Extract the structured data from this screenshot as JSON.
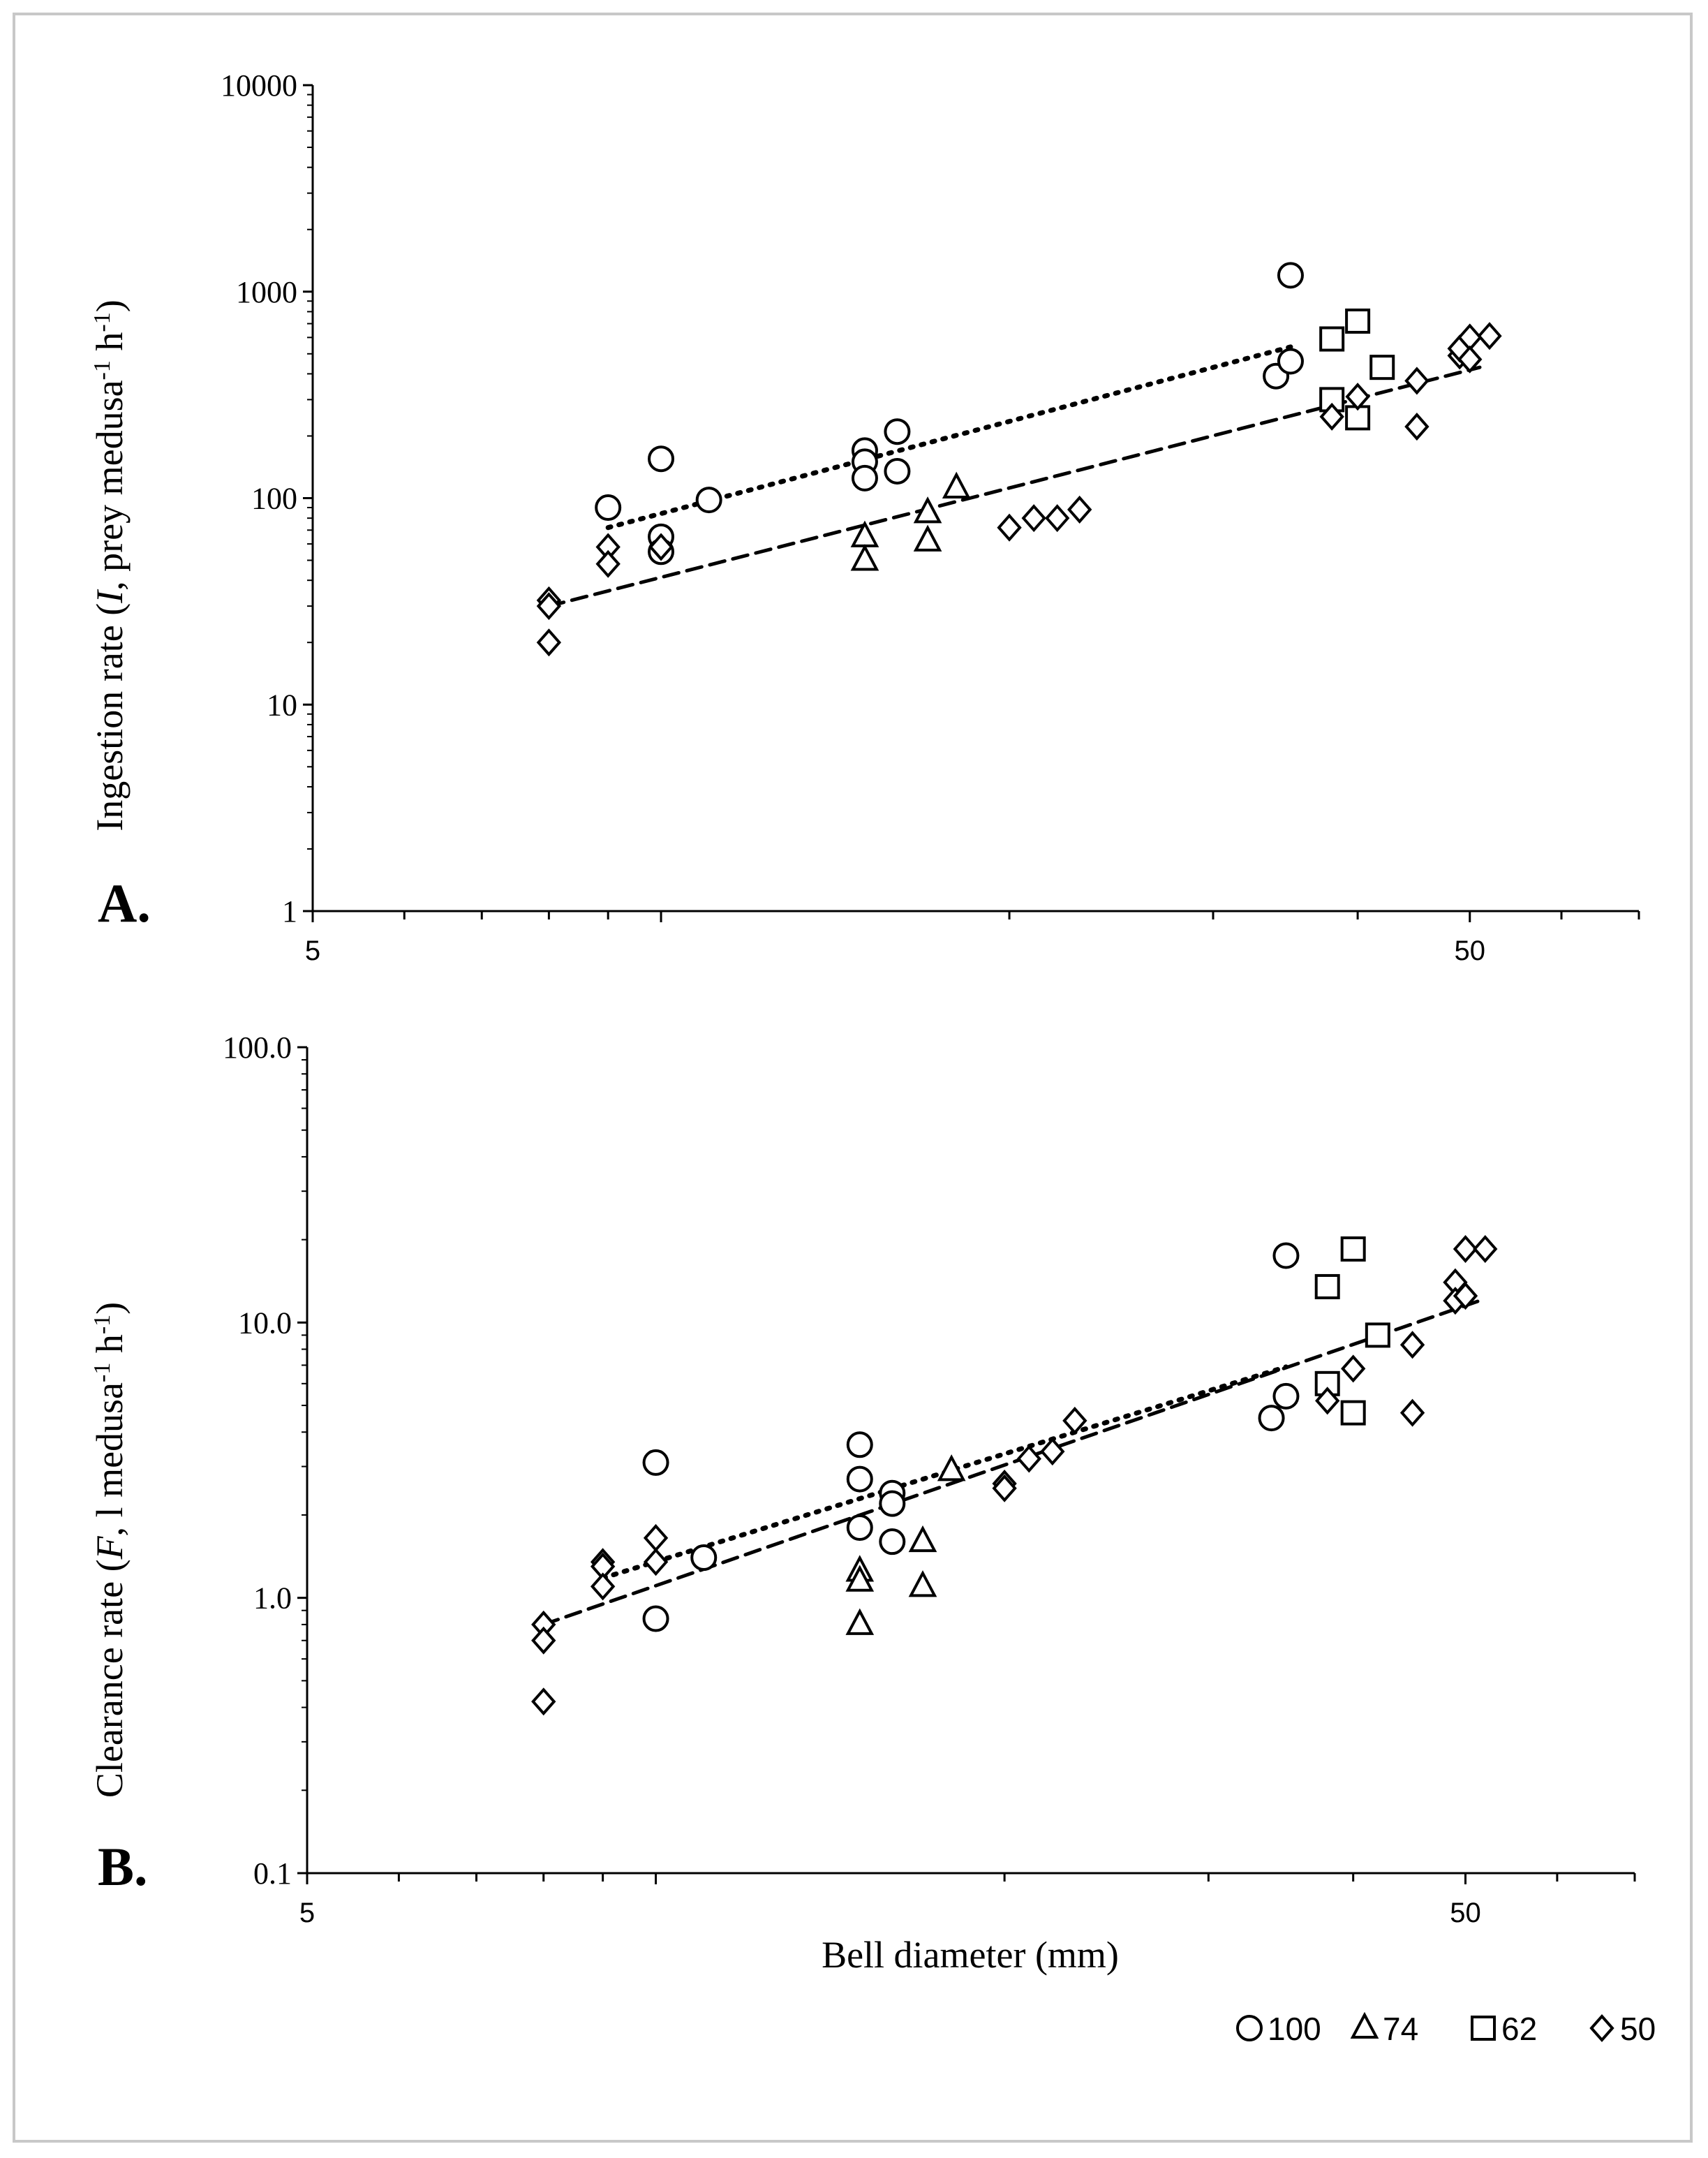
{
  "chart_data": [
    {
      "type": "scatter",
      "panel_label": "A.",
      "ylabel": {
        "pre": "Ingestion rate (",
        "var": "I",
        "mid": ", prey medusa",
        "sup1": "-1",
        "mid2": " h",
        "sup2": "-1",
        "post": ")"
      },
      "xlabel": "",
      "x_scale": "log",
      "y_scale": "log",
      "xlim": [
        5,
        70
      ],
      "ylim": [
        1,
        10000
      ],
      "x_ticks": [
        {
          "value": 5,
          "label": "5"
        },
        {
          "value": 50,
          "label": "50"
        }
      ],
      "y_ticks": [
        {
          "value": 1,
          "label": "1"
        },
        {
          "value": 10,
          "label": "10"
        },
        {
          "value": 100,
          "label": "100"
        },
        {
          "value": 1000,
          "label": "1000"
        },
        {
          "value": 10000,
          "label": "10000"
        }
      ],
      "series": [
        {
          "name": "100",
          "marker": "circle",
          "points": [
            [
              9,
              90
            ],
            [
              10,
              155
            ],
            [
              10,
              65
            ],
            [
              10,
              55
            ],
            [
              11,
              98
            ],
            [
              15,
              170
            ],
            [
              15,
              150
            ],
            [
              15,
              125
            ],
            [
              16,
              210
            ],
            [
              16,
              135
            ],
            [
              34,
              390
            ],
            [
              35,
              460
            ],
            [
              35,
              1200
            ]
          ]
        },
        {
          "name": "74",
          "marker": "triangle",
          "points": [
            [
              15,
              65
            ],
            [
              15,
              50
            ],
            [
              17,
              85
            ],
            [
              17,
              62
            ],
            [
              18,
              112
            ]
          ]
        },
        {
          "name": "62",
          "marker": "square",
          "points": [
            [
              38,
              590
            ],
            [
              38,
              300
            ],
            [
              40,
              720
            ],
            [
              40,
              245
            ],
            [
              42,
              430
            ]
          ]
        },
        {
          "name": "50",
          "marker": "diamond",
          "points": [
            [
              8,
              32
            ],
            [
              8,
              30
            ],
            [
              8,
              20
            ],
            [
              9,
              58
            ],
            [
              9,
              48
            ],
            [
              10,
              58
            ],
            [
              20,
              72
            ],
            [
              21,
              80
            ],
            [
              22,
              80
            ],
            [
              23,
              88
            ],
            [
              38,
              248
            ],
            [
              40,
              310
            ],
            [
              45,
              370
            ],
            [
              45,
              222
            ],
            [
              49,
              490
            ],
            [
              49,
              530
            ],
            [
              50,
              600
            ],
            [
              50,
              470
            ],
            [
              52,
              610
            ]
          ]
        }
      ],
      "trendlines": [
        {
          "name": "100",
          "style": "dotted",
          "x": [
            9,
            35
          ],
          "y": [
            72,
            540
          ]
        },
        {
          "name": "50",
          "style": "dashed",
          "x": [
            8,
            51
          ],
          "y": [
            30,
            430
          ]
        }
      ]
    },
    {
      "type": "scatter",
      "panel_label": "B.",
      "ylabel": {
        "pre": "Clearance rate (",
        "var": "F",
        "mid": ", l medusa",
        "sup1": "-1",
        "mid2": " h",
        "sup2": "-1",
        "post": ")"
      },
      "xlabel": "Bell diameter (mm)",
      "x_scale": "log",
      "y_scale": "log",
      "xlim": [
        5,
        70
      ],
      "ylim": [
        0.1,
        100
      ],
      "x_ticks": [
        {
          "value": 5,
          "label": "5"
        },
        {
          "value": 50,
          "label": "50"
        }
      ],
      "y_ticks": [
        {
          "value": 0.1,
          "label": "0.1"
        },
        {
          "value": 1,
          "label": "1.0"
        },
        {
          "value": 10,
          "label": "10.0"
        },
        {
          "value": 100,
          "label": "100.0"
        }
      ],
      "series": [
        {
          "name": "100",
          "marker": "circle",
          "points": [
            [
              10,
              3.1
            ],
            [
              10,
              0.84
            ],
            [
              11,
              1.4
            ],
            [
              15,
              3.6
            ],
            [
              15,
              2.7
            ],
            [
              15,
              1.8
            ],
            [
              16,
              2.4
            ],
            [
              16,
              2.2
            ],
            [
              16,
              1.6
            ],
            [
              34,
              4.5
            ],
            [
              35,
              5.4
            ],
            [
              35,
              17.5
            ]
          ]
        },
        {
          "name": "74",
          "marker": "triangle",
          "points": [
            [
              15,
              1.25
            ],
            [
              15,
              1.15
            ],
            [
              15,
              0.8
            ],
            [
              17,
              1.6
            ],
            [
              17,
              1.1
            ],
            [
              18,
              2.9
            ]
          ]
        },
        {
          "name": "62",
          "marker": "square",
          "points": [
            [
              38,
              13.5
            ],
            [
              38,
              6.0
            ],
            [
              40,
              18.5
            ],
            [
              40,
              4.7
            ],
            [
              42,
              9.0
            ]
          ]
        },
        {
          "name": "50",
          "marker": "diamond",
          "points": [
            [
              8,
              0.8
            ],
            [
              8,
              0.7
            ],
            [
              8,
              0.42
            ],
            [
              9,
              1.35
            ],
            [
              9,
              1.3
            ],
            [
              9,
              1.1
            ],
            [
              10,
              1.65
            ],
            [
              10,
              1.35
            ],
            [
              20,
              2.6
            ],
            [
              20,
              2.5
            ],
            [
              21,
              3.2
            ],
            [
              22,
              3.4
            ],
            [
              23,
              4.4
            ],
            [
              38,
              5.2
            ],
            [
              40,
              6.8
            ],
            [
              45,
              8.3
            ],
            [
              45,
              4.7
            ],
            [
              49,
              14
            ],
            [
              49,
              12
            ],
            [
              50,
              18.5
            ],
            [
              50,
              12.5
            ],
            [
              52,
              18.5
            ]
          ]
        }
      ],
      "trendlines": [
        {
          "name": "100",
          "style": "dotted",
          "x": [
            9,
            35
          ],
          "y": [
            1.18,
            6.9
          ]
        },
        {
          "name": "50",
          "style": "dashed",
          "x": [
            8,
            52
          ],
          "y": [
            0.8,
            12.2
          ]
        }
      ]
    }
  ],
  "legend": [
    {
      "marker": "circle",
      "label": "100"
    },
    {
      "marker": "triangle",
      "label": "74"
    },
    {
      "marker": "square",
      "label": "62"
    },
    {
      "marker": "diamond",
      "label": "50"
    }
  ]
}
